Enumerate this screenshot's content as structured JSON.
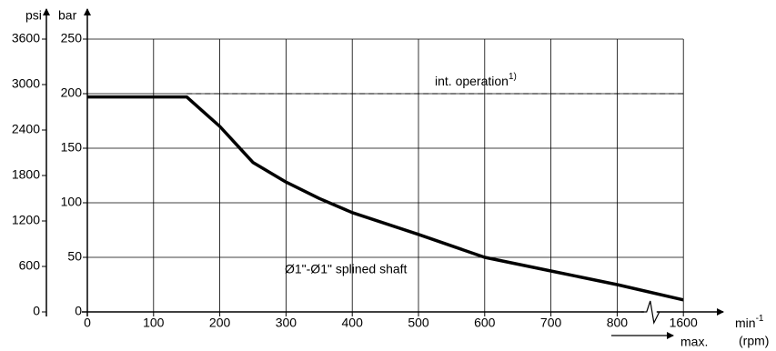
{
  "chart_data": {
    "type": "line",
    "y_label": "bar",
    "y2_label": "psi",
    "x_label": "min",
    "x_label_sup": "-1",
    "x_unit": "(rpm)",
    "x_max_label": "max.",
    "xlim": [
      0,
      1600
    ],
    "xticks": [
      0,
      100,
      200,
      300,
      400,
      500,
      600,
      700,
      800,
      1600
    ],
    "x_break": true,
    "ylim": [
      0,
      250
    ],
    "yticks": [
      0,
      50,
      100,
      150,
      200,
      250
    ],
    "y2lim": [
      0,
      3600
    ],
    "y2ticks": [
      0,
      600,
      1200,
      1800,
      2400,
      3000,
      3600
    ],
    "grid": true,
    "reference": {
      "value": 200,
      "label": "int. operation",
      "label_sup": "1)"
    },
    "series": [
      {
        "name": "Ø1\"-Ø1\" splined shaft",
        "color": "#000000",
        "x": [
          0,
          150,
          200,
          250,
          300,
          350,
          400,
          500,
          600,
          700,
          800,
          1600
        ],
        "values": [
          197,
          197,
          170,
          137,
          119,
          104,
          91,
          71,
          50,
          37.5,
          25,
          11
        ]
      }
    ]
  }
}
